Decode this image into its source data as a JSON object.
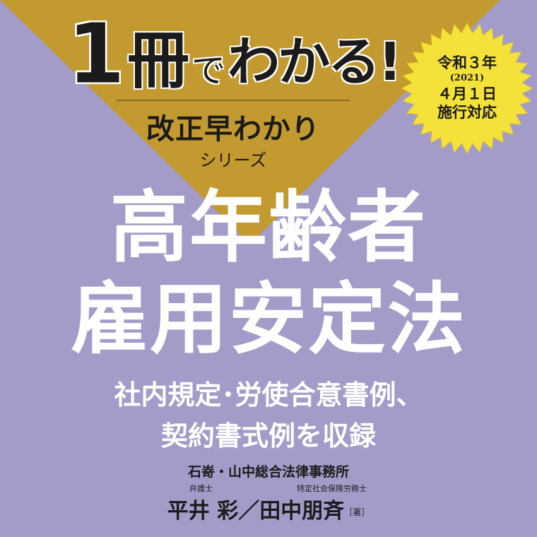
{
  "colors": {
    "background": "#a39cc9",
    "gold": "#c39a2f",
    "badge_yellow": "#f4e23a",
    "dark_text": "#1b1b1b",
    "white_text": "#ffffff"
  },
  "header": {
    "one": "1",
    "satsu": "冊",
    "de": "で",
    "wakaru": "わかる!"
  },
  "series": {
    "name": "改正早わかり",
    "word": "シリーズ"
  },
  "badge": {
    "line1": "令和３年",
    "line2": "(2021)",
    "line3": "４月１日",
    "line4": "施行対応"
  },
  "title": {
    "line1": "高年齢者",
    "line2": "雇用安定法"
  },
  "subtitle": {
    "line1": "社内規定･労使合意書例、",
    "line2": "契約書式例を収録"
  },
  "firm": "石嵜・山中総合法律事務所",
  "authors": {
    "role1": "弁護士",
    "role2": "特定社会保険労務士",
    "names": "平井 彩／田中朋斉",
    "suffix": "［著］"
  }
}
